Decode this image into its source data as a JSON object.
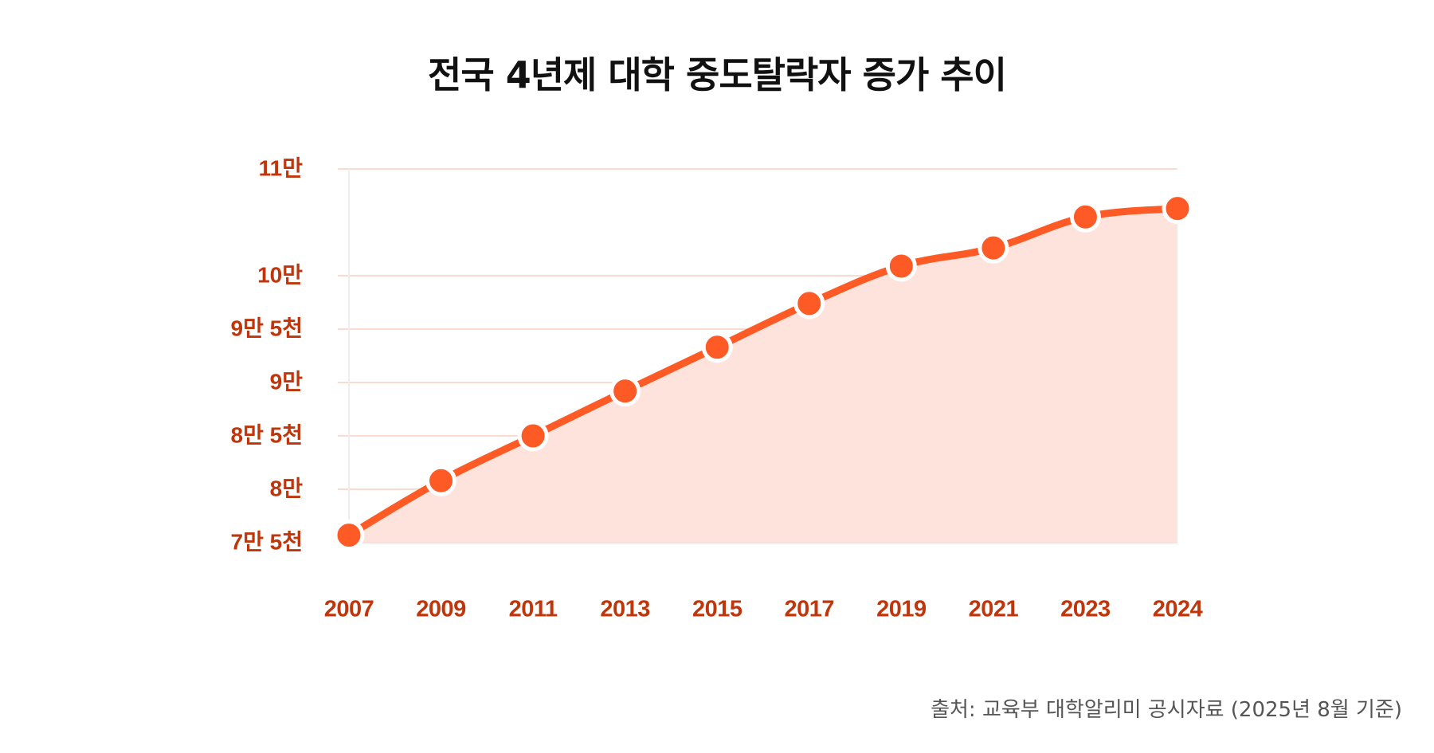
{
  "chart_data": {
    "type": "area",
    "title": "전국 4년제 대학 중도탈락자 증가 추이",
    "x": [
      "2007",
      "2009",
      "2011",
      "2013",
      "2015",
      "2017",
      "2019",
      "2021",
      "2023",
      "2024"
    ],
    "values": [
      75700,
      80800,
      85000,
      89200,
      93300,
      97400,
      100900,
      102600,
      105500,
      106300
    ],
    "ylim": [
      75000,
      110000
    ],
    "yticks": [
      {
        "value": 110000,
        "label": "11만"
      },
      {
        "value": 100000,
        "label": "10만"
      },
      {
        "value": 95000,
        "label": "9만 5천"
      },
      {
        "value": 90000,
        "label": "9만"
      },
      {
        "value": 85000,
        "label": "8만 5천"
      },
      {
        "value": 80000,
        "label": "8만"
      },
      {
        "value": 75000,
        "label": "7만 5천"
      }
    ],
    "xlabel": "",
    "ylabel": "",
    "grid": true,
    "source": "출처: 교육부 대학알리미 공시자료 (2025년 8월 기준)"
  },
  "colors": {
    "line": "#fd5a26",
    "area": "#fde3dc",
    "grid": "#fbdad0",
    "tick_text": "#c0360c",
    "marker_stroke": "#ffffff"
  }
}
